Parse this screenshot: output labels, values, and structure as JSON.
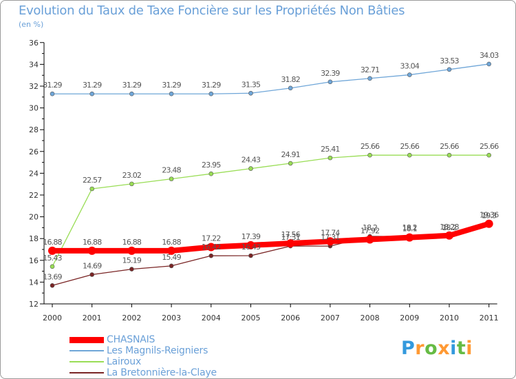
{
  "chart_data": {
    "type": "line",
    "title": "Evolution du Taux de Taxe Foncière sur les Propriétés Non Bâties",
    "subtitle": "(en %)",
    "xlabel": "",
    "ylabel": "(en %)",
    "categories": [
      "2000",
      "2001",
      "2002",
      "2003",
      "2004",
      "2005",
      "2006",
      "2007",
      "2008",
      "2009",
      "2010",
      "2011"
    ],
    "yticks": [
      "12",
      "14",
      "16",
      "18",
      "20",
      "22",
      "24",
      "26",
      "28",
      "30",
      "32",
      "34",
      "36"
    ],
    "ylim": [
      12,
      36
    ],
    "grid": false,
    "legend_position": "bottom-left",
    "series": [
      {
        "name": "CHASNAIS",
        "color": "#ff0000",
        "values": [
          16.88,
          16.88,
          16.88,
          16.88,
          17.22,
          17.39,
          17.56,
          17.74,
          17.92,
          18.1,
          18.28,
          19.36
        ],
        "labels": [
          "16.88",
          "16.88",
          "16.88",
          "16.88",
          "17.22",
          "17.39",
          "17.56",
          "17.74",
          "17.92",
          "18.1",
          "18.28",
          "19.36"
        ]
      },
      {
        "name": "Les Magnils-Reigniers",
        "color": "#6fa6d8",
        "values": [
          31.29,
          31.29,
          31.29,
          31.29,
          31.29,
          31.35,
          31.82,
          32.39,
          32.71,
          33.04,
          33.53,
          34.03
        ],
        "labels": [
          "31.29",
          "31.29",
          "31.29",
          "31.29",
          "31.29",
          "31.35",
          "31.82",
          "32.39",
          "32.71",
          "33.04",
          "33.53",
          "34.03"
        ]
      },
      {
        "name": "Lairoux",
        "color": "#99dd55",
        "values": [
          15.43,
          22.57,
          23.02,
          23.48,
          23.95,
          24.43,
          24.91,
          25.41,
          25.66,
          25.66,
          25.66,
          25.66
        ],
        "labels": [
          "15.43",
          "22.57",
          "23.02",
          "23.48",
          "23.95",
          "24.43",
          "24.91",
          "25.41",
          "25.66",
          "25.66",
          "25.66",
          "25.66"
        ]
      },
      {
        "name": "La Bretonnière-la-Claye",
        "color": "#7a2525",
        "values": [
          13.69,
          14.69,
          15.19,
          15.49,
          16.42,
          16.43,
          17.31,
          17.31,
          18.2,
          18.2,
          18.2,
          19.3
        ],
        "labels": [
          "13.69",
          "14.69",
          "15.19",
          "15.49",
          "16.42",
          "16.43",
          "17.31",
          "17.31",
          "18.2",
          "18.2",
          "18.2",
          "19.3"
        ]
      }
    ]
  },
  "logo_text": "Proxiti"
}
